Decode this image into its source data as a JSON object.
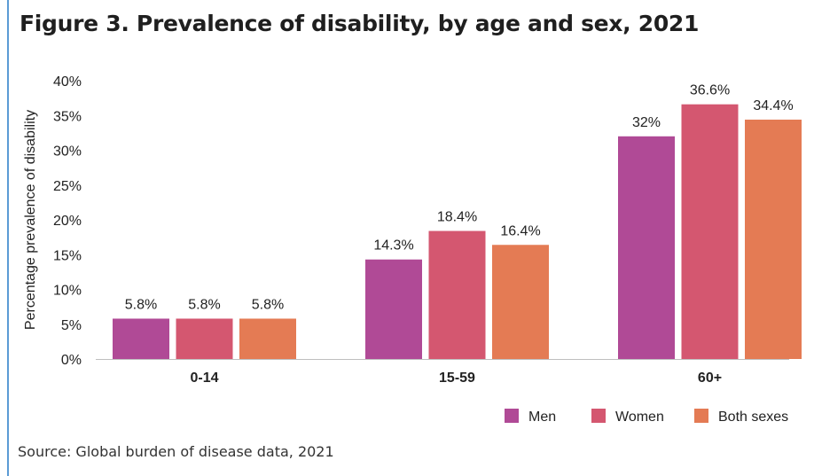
{
  "title": "Figure 3. Prevalence of disability, by age and sex, 2021",
  "source": "Source: Global burden of disease data, 2021",
  "colors": {
    "Men": "#b04a96",
    "Women": "#d45770",
    "Both sexes": "#e47b54"
  },
  "chart_data": {
    "type": "bar",
    "title": "Figure 3. Prevalence of disability, by age and sex, 2021",
    "xlabel": "",
    "ylabel": "Percentage prevalence of disability",
    "ylim": [
      0,
      40
    ],
    "yticks": [
      "0%",
      "5%",
      "10%",
      "15%",
      "20%",
      "25%",
      "30%",
      "35%",
      "40%"
    ],
    "categories": [
      "0-14",
      "15-59",
      "60+"
    ],
    "series": [
      {
        "name": "Men",
        "values": [
          5.8,
          14.3,
          32
        ],
        "labels": [
          "5.8%",
          "14.3%",
          "32%"
        ]
      },
      {
        "name": "Women",
        "values": [
          5.8,
          18.4,
          36.6
        ],
        "labels": [
          "5.8%",
          "18.4%",
          "36.6%"
        ]
      },
      {
        "name": "Both sexes",
        "values": [
          5.8,
          16.4,
          34.4
        ],
        "labels": [
          "5.8%",
          "16.4%",
          "34.4%"
        ]
      }
    ],
    "legend_position": "bottom-right",
    "grid": false
  }
}
